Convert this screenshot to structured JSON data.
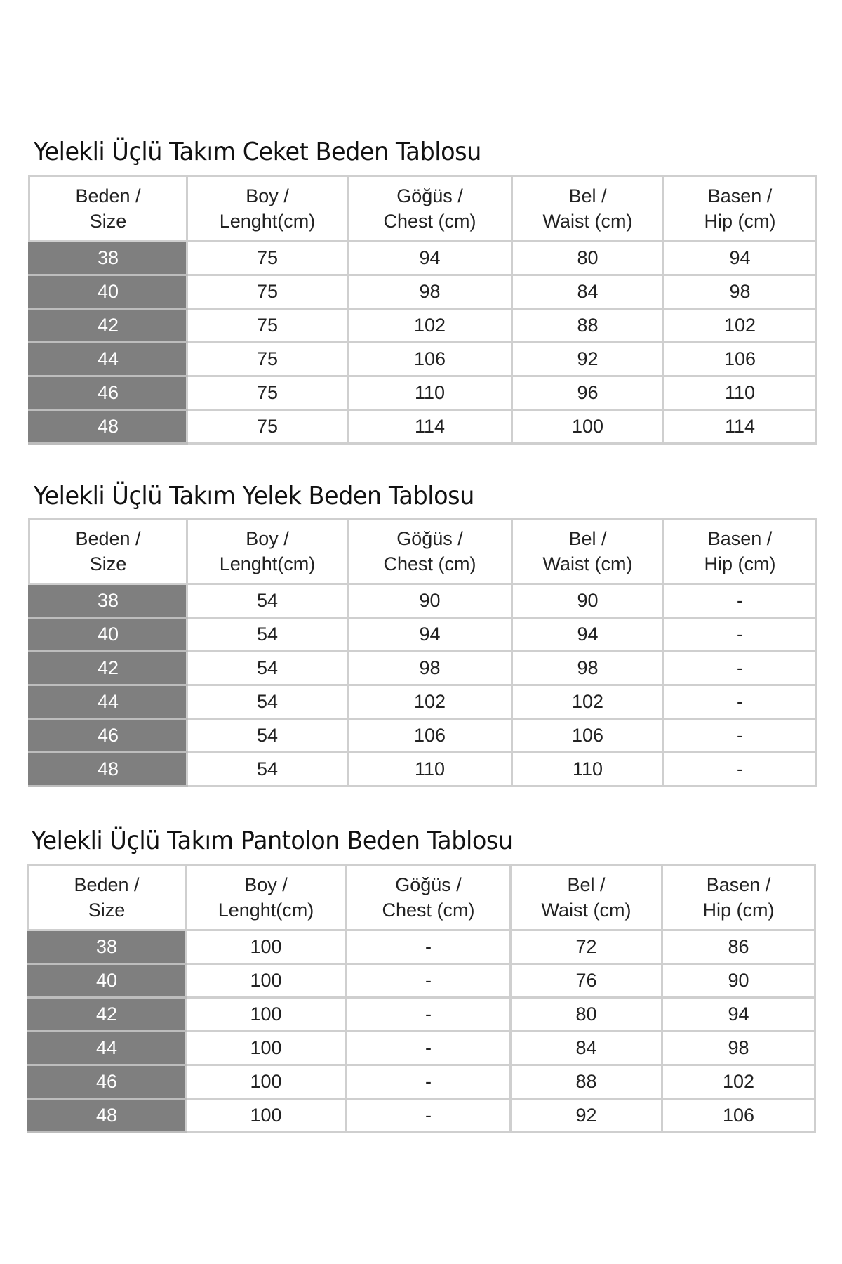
{
  "columns": [
    "Beden /\nSize",
    "Boy /\nLenght(cm)",
    "Göğüs /\nChest (cm)",
    "Bel /\nWaist (cm)",
    "Basen /\nHip (cm)"
  ],
  "tables": [
    {
      "title": "Yelekli Üçlü Takım Ceket Beden Tablosu",
      "rows": [
        [
          "38",
          "75",
          "94",
          "80",
          "94"
        ],
        [
          "40",
          "75",
          "98",
          "84",
          "98"
        ],
        [
          "42",
          "75",
          "102",
          "88",
          "102"
        ],
        [
          "44",
          "75",
          "106",
          "92",
          "106"
        ],
        [
          "46",
          "75",
          "110",
          "96",
          "110"
        ],
        [
          "48",
          "75",
          "114",
          "100",
          "114"
        ]
      ]
    },
    {
      "title": "Yelekli Üçlü Takım Yelek Beden Tablosu",
      "rows": [
        [
          "38",
          "54",
          "90",
          "90",
          "-"
        ],
        [
          "40",
          "54",
          "94",
          "94",
          "-"
        ],
        [
          "42",
          "54",
          "98",
          "98",
          "-"
        ],
        [
          "44",
          "54",
          "102",
          "102",
          "-"
        ],
        [
          "46",
          "54",
          "106",
          "106",
          "-"
        ],
        [
          "48",
          "54",
          "110",
          "110",
          "-"
        ]
      ]
    },
    {
      "title": "Yelekli Üçlü Takım Pantolon Beden Tablosu",
      "rows": [
        [
          "38",
          "100",
          "-",
          "72",
          "86"
        ],
        [
          "40",
          "100",
          "-",
          "76",
          "90"
        ],
        [
          "42",
          "100",
          "-",
          "80",
          "94"
        ],
        [
          "44",
          "100",
          "-",
          "84",
          "98"
        ],
        [
          "46",
          "100",
          "-",
          "88",
          "102"
        ],
        [
          "48",
          "100",
          "-",
          "92",
          "106"
        ]
      ]
    }
  ],
  "colors": {
    "size_column": "#7f7f7f",
    "grid": "#cfcfcf",
    "border": "#222222"
  }
}
